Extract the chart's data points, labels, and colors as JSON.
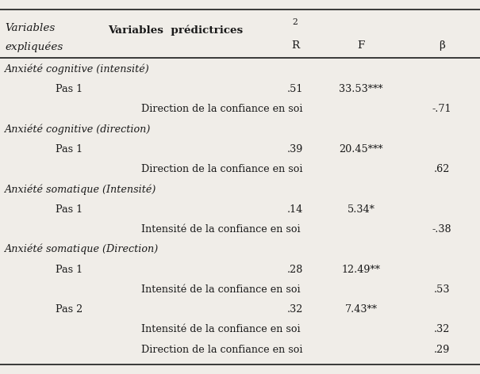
{
  "header_col1_line1": "Variables",
  "header_col1_line2": "expliquées",
  "header_col2": "Variables  prédictrices",
  "header_R2_super": "2",
  "header_R": "R",
  "header_F": "F",
  "header_beta": "β",
  "rows": [
    {
      "type": "section",
      "text": "Anxiété cognitive (intensité)",
      "col1": "",
      "col2": "",
      "R2": "",
      "F": "",
      "beta": ""
    },
    {
      "type": "data",
      "col1": "Pas 1",
      "col2": "",
      "R2": ".51",
      "F": "33.53***",
      "beta": "",
      "level1": 1,
      "level2": 0
    },
    {
      "type": "data",
      "col1": "",
      "col2": "Direction de la confiance en soi",
      "R2": "",
      "F": "",
      "beta": "-.71",
      "level1": 0,
      "level2": 1
    },
    {
      "type": "section",
      "text": "Anxiété cognitive (direction)",
      "col1": "",
      "col2": "",
      "R2": "",
      "F": "",
      "beta": ""
    },
    {
      "type": "data",
      "col1": "Pas 1",
      "col2": "",
      "R2": ".39",
      "F": "20.45***",
      "beta": "",
      "level1": 1,
      "level2": 0
    },
    {
      "type": "data",
      "col1": "",
      "col2": "Direction de la confiance en soi",
      "R2": "",
      "F": "",
      "beta": ".62",
      "level1": 0,
      "level2": 1
    },
    {
      "type": "section",
      "text": "Anxiété somatique (Intensité)",
      "col1": "",
      "col2": "",
      "R2": "",
      "F": "",
      "beta": ""
    },
    {
      "type": "data",
      "col1": "Pas 1",
      "col2": "",
      "R2": ".14",
      "F": "5.34*",
      "beta": "",
      "level1": 1,
      "level2": 0
    },
    {
      "type": "data",
      "col1": "",
      "col2": "Intensité de la confiance en soi",
      "R2": "",
      "F": "",
      "beta": "-.38",
      "level1": 0,
      "level2": 1
    },
    {
      "type": "section",
      "text": "Anxiété somatique (Direction)",
      "col1": "",
      "col2": "",
      "R2": "",
      "F": "",
      "beta": ""
    },
    {
      "type": "data",
      "col1": "Pas 1",
      "col2": "",
      "R2": ".28",
      "F": "12.49**",
      "beta": "",
      "level1": 1,
      "level2": 0
    },
    {
      "type": "data",
      "col1": "",
      "col2": "Intensité de la confiance en soi",
      "R2": "",
      "F": "",
      "beta": ".53",
      "level1": 0,
      "level2": 1
    },
    {
      "type": "data",
      "col1": "Pas 2",
      "col2": "",
      "R2": ".32",
      "F": "7.43**",
      "beta": "",
      "level1": 1,
      "level2": 0
    },
    {
      "type": "data",
      "col1": "",
      "col2": "Intensité de la confiance en soi",
      "R2": "",
      "F": "",
      "beta": ".32",
      "level1": 0,
      "level2": 1
    },
    {
      "type": "data",
      "col1": "",
      "col2": "Direction de la confiance en soi",
      "R2": "",
      "F": "",
      "beta": ".29",
      "level1": 0,
      "level2": 1
    }
  ],
  "background_color": "#f0ede8",
  "text_color": "#1a1a1a",
  "font_size": 9.2,
  "line_color": "#1a1a1a"
}
